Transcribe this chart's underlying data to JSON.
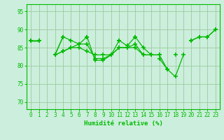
{
  "bg_color": "#cceedd",
  "line_color": "#00bb00",
  "grid_color": "#99cc99",
  "xlabel": "Humidité relative (%)",
  "ylim": [
    68,
    97
  ],
  "xlim": [
    -0.5,
    23.5
  ],
  "yticks": [
    70,
    75,
    80,
    85,
    90,
    95
  ],
  "xticks": [
    0,
    1,
    2,
    3,
    4,
    5,
    6,
    7,
    8,
    9,
    10,
    11,
    12,
    13,
    14,
    15,
    16,
    17,
    18,
    19,
    20,
    21,
    22,
    23
  ],
  "lines": [
    [
      87,
      87,
      null,
      null,
      null,
      null,
      null,
      null,
      null,
      null,
      null,
      null,
      null,
      null,
      null,
      null,
      null,
      null,
      null,
      null,
      null,
      null,
      null,
      null
    ],
    [
      87,
      87,
      null,
      83,
      88,
      null,
      null,
      88,
      null,
      null,
      null,
      87,
      null,
      88,
      null,
      null,
      null,
      null,
      null,
      null,
      null,
      null,
      null,
      null
    ],
    [
      87,
      87,
      null,
      83,
      84,
      85,
      85,
      84,
      83,
      83,
      83,
      85,
      85,
      85,
      83,
      83,
      83,
      null,
      83,
      null,
      null,
      null,
      null,
      null
    ],
    [
      87,
      87,
      null,
      83,
      84,
      85,
      86,
      86,
      82,
      82,
      83,
      85,
      85,
      86,
      83,
      83,
      null,
      null,
      null,
      null,
      87,
      88,
      88,
      90
    ],
    [
      87,
      87,
      null,
      83,
      88,
      87,
      86,
      88,
      81.5,
      81.5,
      83,
      87,
      85.5,
      88,
      85,
      83,
      83,
      79,
      null,
      null,
      null,
      null,
      null,
      null
    ],
    [
      null,
      null,
      null,
      null,
      null,
      null,
      null,
      null,
      null,
      null,
      null,
      null,
      null,
      null,
      null,
      null,
      82,
      79,
      77,
      83,
      null,
      null,
      null,
      null
    ],
    [
      null,
      null,
      null,
      null,
      null,
      null,
      null,
      null,
      null,
      null,
      null,
      null,
      null,
      null,
      null,
      null,
      null,
      null,
      null,
      null,
      87,
      88,
      88,
      90
    ]
  ]
}
